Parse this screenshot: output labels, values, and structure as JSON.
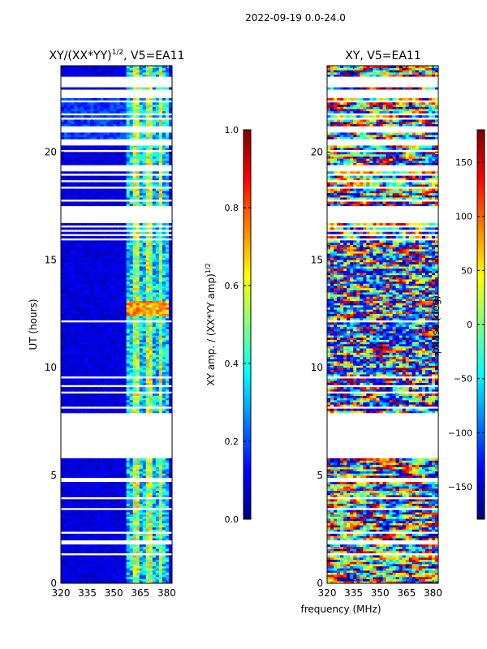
{
  "figure": {
    "suptitle": "2022-09-19 0.0-24.0",
    "shared_xlabel": "frequency (MHz)"
  },
  "chart_data": [
    {
      "type": "heatmap",
      "title_main": "XY/(XX*YY)",
      "title_sup": "1/2",
      "title_suffix": ", V5=EA11",
      "xlabel": "frequency (MHz)",
      "ylabel": "UT (hours)",
      "xlim": [
        320,
        383
      ],
      "ylim": [
        0,
        24
      ],
      "xticks": [
        320,
        335,
        350,
        365,
        380
      ],
      "yticks": [
        0,
        5,
        10,
        15,
        20
      ],
      "colorbar": {
        "label_main": "XY amp. / (XX*YY amp)",
        "label_sup": "1/2",
        "range": [
          0.0,
          1.0
        ],
        "ticks": [
          "0.0",
          "0.2",
          "0.4",
          "0.6",
          "0.8",
          "1.0"
        ],
        "tick_values": [
          0.0,
          0.2,
          0.4,
          0.6,
          0.8,
          1.0
        ]
      },
      "colormap": "jet",
      "data_gaps_hours": [
        [
          5.8,
          7.7
        ],
        [
          16.9,
          17.5
        ],
        [
          19.1,
          19.3
        ]
      ]
    },
    {
      "type": "heatmap",
      "title_main": "XY, V5=EA11",
      "xlabel": "frequency (MHz)",
      "ylabel": "",
      "xlim": [
        320,
        383
      ],
      "ylim": [
        0,
        24
      ],
      "xticks": [
        320,
        335,
        350,
        365,
        380
      ],
      "yticks": [
        0,
        5,
        10,
        15,
        20
      ],
      "colorbar": {
        "label_main": "phase (deg)",
        "range": [
          -180,
          180
        ],
        "ticks": [
          "150",
          "100",
          "50",
          "0",
          "−50",
          "−100",
          "−150"
        ],
        "tick_values": [
          150,
          100,
          50,
          0,
          -50,
          -100,
          -150
        ]
      },
      "colormap": "jet",
      "data_gaps_hours": [
        [
          5.8,
          7.7
        ],
        [
          16.9,
          17.5
        ],
        [
          19.1,
          19.3
        ]
      ]
    }
  ]
}
